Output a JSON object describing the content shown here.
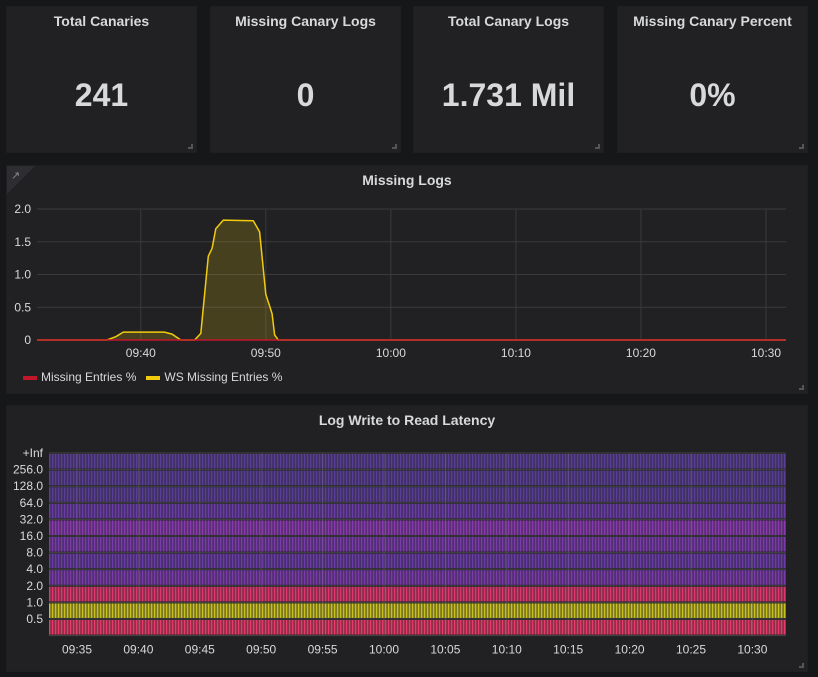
{
  "stats": [
    {
      "title": "Total Canaries",
      "value": "241"
    },
    {
      "title": "Missing Canary Logs",
      "value": "0"
    },
    {
      "title": "Total Canary Logs",
      "value": "1.731 Mil"
    },
    {
      "title": "Missing Canary Percent",
      "value": "0%"
    }
  ],
  "graph": {
    "title": "Missing Logs",
    "icon": "external-link-icon",
    "chart_data": {
      "type": "line",
      "y_ticks": [
        "0",
        "0.5",
        "1.0",
        "1.5",
        "2.0"
      ],
      "ylim": [
        0,
        2.0
      ],
      "x_ticks": [
        "09:40",
        "09:50",
        "10:00",
        "10:10",
        "10:20",
        "10:30"
      ],
      "xlim": [
        "09:31.7",
        "10:31.6"
      ],
      "grid": true,
      "legend": "bottom-left",
      "series": [
        {
          "name": "Missing Entries %",
          "color": "#c4162a",
          "points": [
            [
              "09:31.7",
              0
            ],
            [
              "10:31.6",
              0
            ]
          ]
        },
        {
          "name": "WS Missing Entries %",
          "color": "#f2cc0c",
          "fill": true,
          "points": [
            [
              "09:31.7",
              0
            ],
            [
              "09:37.3",
              0
            ],
            [
              "09:38.0",
              0.05
            ],
            [
              "09:38.6",
              0.12
            ],
            [
              "09:41.9",
              0.12
            ],
            [
              "09:42.5",
              0.09
            ],
            [
              "09:43.2",
              0
            ],
            [
              "09:44.3",
              0
            ],
            [
              "09:44.8",
              0.1
            ],
            [
              "09:45.4",
              1.28
            ],
            [
              "09:45.7",
              1.4
            ],
            [
              "09:46.0",
              1.7
            ],
            [
              "09:46.6",
              1.83
            ],
            [
              "09:49.0",
              1.82
            ],
            [
              "09:49.5",
              1.65
            ],
            [
              "09:50.0",
              0.7
            ],
            [
              "09:50.5",
              0.4
            ],
            [
              "09:50.7",
              0.08
            ],
            [
              "09:51.0",
              0
            ],
            [
              "10:31.6",
              0
            ]
          ]
        }
      ]
    }
  },
  "heatmap": {
    "title": "Log Write to Read Latency",
    "chart_data": {
      "type": "heatmap",
      "y_buckets": [
        "+Inf",
        "256.0",
        "128.0",
        "64.0",
        "32.0",
        "16.0",
        "8.0",
        "4.0",
        "2.0",
        "1.0",
        "0.5"
      ],
      "x_ticks": [
        "09:35",
        "09:40",
        "09:45",
        "09:50",
        "09:55",
        "10:00",
        "10:05",
        "10:10",
        "10:15",
        "10:20",
        "10:25",
        "10:30"
      ],
      "row_colors": [
        "#5a3d96",
        "#5a3d96",
        "#5a3d96",
        "#6a3aa8",
        "#8a3ab0",
        "#7a3aac",
        "#6a3aa8",
        "#7a3aac",
        "#e0366e",
        "#c8c020",
        "#e83a6a"
      ]
    }
  }
}
